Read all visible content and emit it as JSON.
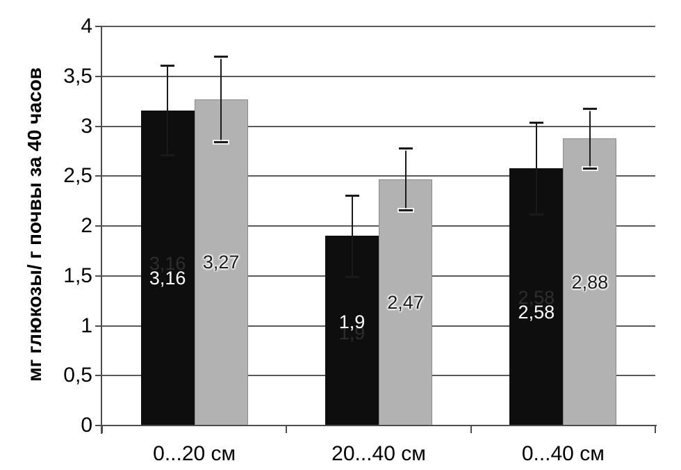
{
  "chart_data": {
    "type": "bar",
    "title": "",
    "xlabel": "",
    "ylabel": "мг глюкозы/ г почвы за 40 часов",
    "categories": [
      "0...20 см",
      "20...40 см",
      "0...40 см"
    ],
    "series": [
      {
        "name": "black-series",
        "color": "#0e0e0e",
        "border_color": "#0e0e0e",
        "values": [
          3.16,
          1.9,
          2.58
        ],
        "labels": [
          "3,16",
          "1,9",
          "2,58"
        ],
        "label_color": "#ffffff",
        "ghost_label_color": "#2d2d2d",
        "errors": [
          0.45,
          0.41,
          0.46
        ],
        "label_dy_white": [
          15,
          -13,
          22
        ],
        "label_dy_ghost": [
          -6,
          3,
          1
        ]
      },
      {
        "name": "gray-series",
        "color": "#b2b2b2",
        "border_color": "#8a8a8a",
        "values": [
          3.27,
          2.47,
          2.88
        ],
        "labels": [
          "3,27",
          "2,47",
          "2,88"
        ],
        "label_color": "#1a1a1a",
        "errors": [
          0.43,
          0.31,
          0.3
        ],
        "label_dy": [
          0,
          0,
          1
        ]
      }
    ],
    "ylim": [
      0,
      4
    ],
    "ytick_step": 0.5,
    "ytick_labels": [
      "0",
      "0,5",
      "1",
      "1,5",
      "2",
      "2,5",
      "3",
      "3,5",
      "4"
    ],
    "grid": true,
    "legend_position": "none",
    "error_bars": true,
    "colors": {
      "background": "#ffffff",
      "gridline": "#5a5a5a",
      "axis": "#4d4d4d",
      "error_bar": "#1a1a1a"
    }
  }
}
